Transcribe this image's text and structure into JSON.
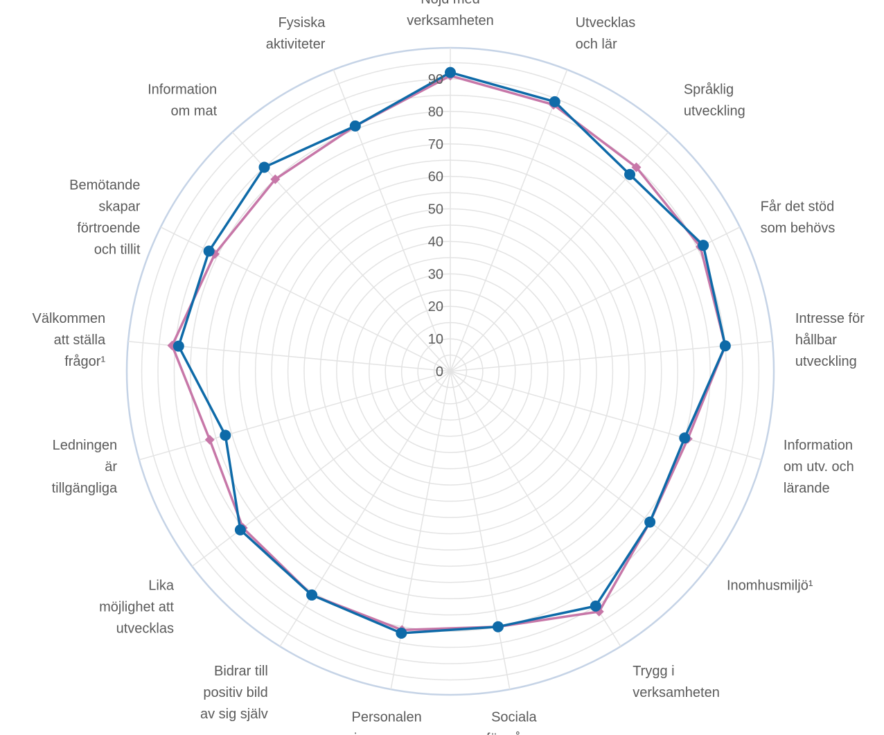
{
  "chart_data": {
    "type": "radar",
    "r_range": [
      0,
      90
    ],
    "r_ticks": [
      "0",
      "10",
      "20",
      "30",
      "40",
      "50",
      "60",
      "70",
      "80",
      "90"
    ],
    "grid": true,
    "categories": [
      [
        "Nöjd med",
        "verksamheten"
      ],
      [
        "Utvecklas",
        "och lär"
      ],
      [
        "Språklig",
        "utveckling"
      ],
      [
        "Får det stöd",
        "som behövs"
      ],
      [
        "Intresse för",
        "hållbar",
        "utveckling"
      ],
      [
        "Information",
        "om utv. och",
        "lärande"
      ],
      [
        "Inomhusmiljö¹"
      ],
      [
        "Trygg i",
        "verksamheten"
      ],
      [
        "Sociala",
        "förmågor"
      ],
      [
        "Personalen",
        "visar omsorg"
      ],
      [
        "Bidrar till",
        "positiv bild",
        "av sig själv"
      ],
      [
        "Lika",
        "möjlighet att",
        "utvecklas"
      ],
      [
        "Ledningen",
        "är",
        "tillgängliga"
      ],
      [
        "Välkommen",
        "att ställa",
        "frågor¹"
      ],
      [
        "Bemötande",
        "skapar",
        "förtroende",
        "och tillit"
      ],
      [
        "Information",
        "om mat"
      ],
      [
        "Fysiska",
        "aktiviteter"
      ]
    ],
    "series": [
      {
        "color": "#c777a8",
        "marker": "diamond",
        "values": [
          91,
          88,
          85,
          86,
          85,
          76,
          77,
          87,
          80,
          81,
          81,
          80,
          77,
          86,
          81,
          80,
          81
        ]
      },
      {
        "color": "#0e6aa8",
        "marker": "circle",
        "values": [
          92,
          89,
          82,
          87,
          85,
          75,
          77,
          85,
          80,
          82,
          81,
          81,
          72,
          84,
          83,
          85,
          81
        ]
      }
    ]
  }
}
